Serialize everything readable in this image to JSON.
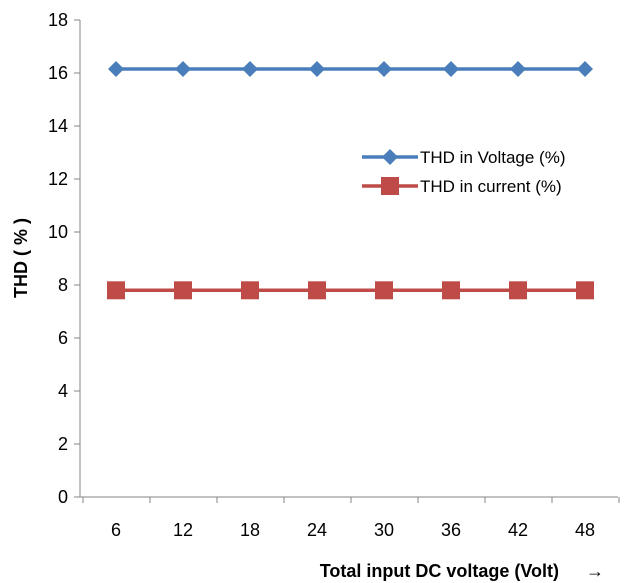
{
  "chart_data": {
    "type": "line",
    "categories": [
      "6",
      "12",
      "18",
      "24",
      "30",
      "36",
      "42",
      "48"
    ],
    "series": [
      {
        "name": "THD in Voltage (%)",
        "values": [
          16.15,
          16.15,
          16.15,
          16.15,
          16.15,
          16.15,
          16.15,
          16.15
        ],
        "color": "#4a7ebb",
        "marker": "diamond"
      },
      {
        "name": "THD in current (%)",
        "values": [
          7.8,
          7.8,
          7.8,
          7.8,
          7.8,
          7.8,
          7.8,
          7.8
        ],
        "color": "#be4b48",
        "marker": "square"
      }
    ],
    "xlabel": "Total input DC voltage (Volt)",
    "xlabel_arrow": "→",
    "ylabel": "THD ( % )",
    "ylim": [
      0,
      18
    ],
    "yticks": [
      "0",
      "2",
      "4",
      "6",
      "8",
      "10",
      "12",
      "14",
      "16",
      "18"
    ],
    "grid": false,
    "legend_position": "right"
  }
}
